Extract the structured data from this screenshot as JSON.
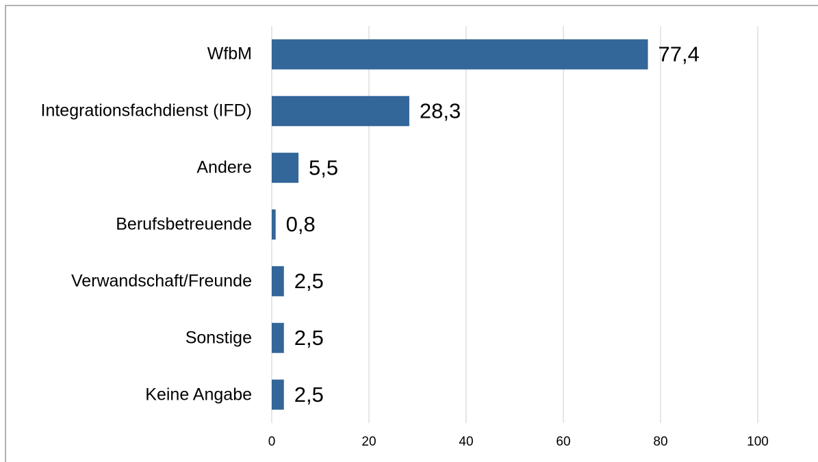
{
  "chart_data": {
    "type": "barh",
    "categories": [
      "WfbM",
      "Integrationsfachdienst (IFD)",
      "Andere",
      "Berufsbetreuende",
      "Verwandschaft/Freunde",
      "Sonstige",
      "Keine Angabe"
    ],
    "values": [
      77.4,
      28.3,
      5.5,
      0.8,
      2.5,
      2.5,
      2.5
    ],
    "value_labels": [
      "77,4",
      "28,3",
      "5,5",
      "0,8",
      "2,5",
      "2,5",
      "2,5"
    ],
    "color": "#336699",
    "xlim": [
      0,
      100
    ],
    "xticks": [
      0,
      20,
      40,
      60,
      80,
      100
    ],
    "grid": true
  }
}
